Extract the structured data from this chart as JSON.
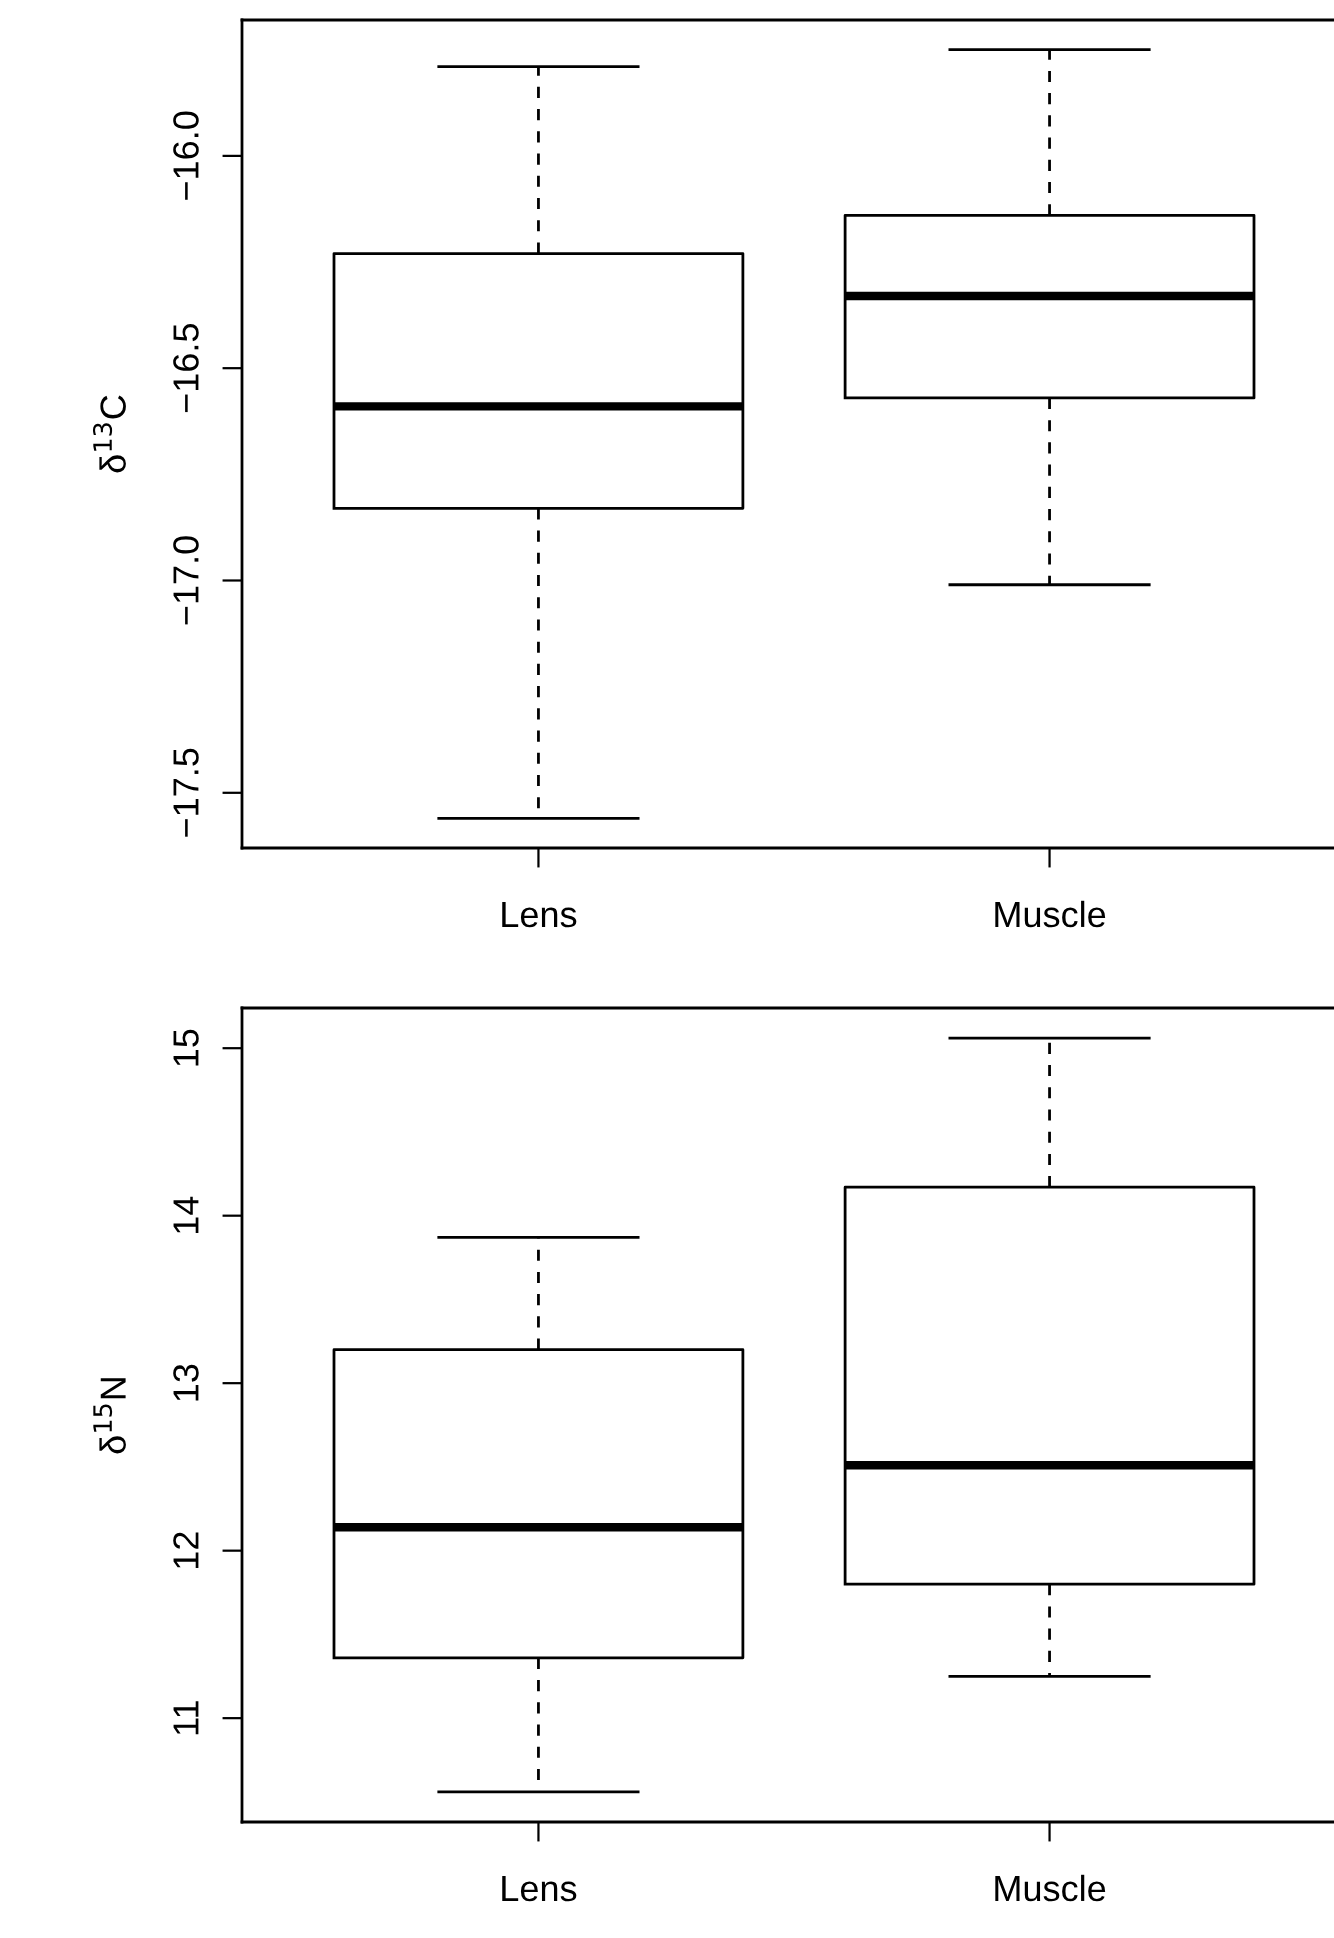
{
  "chart_data": [
    {
      "type": "box",
      "ylabel": "δ$^{13}$C",
      "categories": [
        "Lens",
        "Muscle"
      ],
      "boxes": [
        {
          "low": -17.56,
          "q1": -16.83,
          "median": -16.59,
          "q3": -16.23,
          "high": -15.79
        },
        {
          "low": -17.01,
          "q1": -16.57,
          "median": -16.33,
          "q3": -16.14,
          "high": -15.75
        }
      ],
      "ylim": [
        -17.63,
        -15.68
      ],
      "yticks": [
        {
          "value": -17.5,
          "label": "−17.5"
        },
        {
          "value": -17.0,
          "label": "−17.0"
        },
        {
          "value": -16.5,
          "label": "−16.5"
        },
        {
          "value": -16.0,
          "label": "−16.0"
        }
      ]
    },
    {
      "type": "box",
      "ylabel": "δ$^{15}$N",
      "categories": [
        "Lens",
        "Muscle"
      ],
      "boxes": [
        {
          "low": 10.56,
          "q1": 11.36,
          "median": 12.14,
          "q3": 13.2,
          "high": 13.87
        },
        {
          "low": 11.25,
          "q1": 11.8,
          "median": 12.51,
          "q3": 14.17,
          "high": 15.06
        }
      ],
      "ylim": [
        10.38,
        15.24
      ],
      "yticks": [
        11,
        12,
        13,
        14,
        15
      ]
    }
  ]
}
